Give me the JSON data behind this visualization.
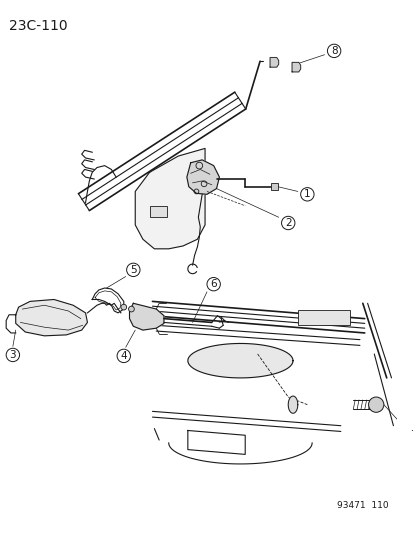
{
  "page_id": "23C-110",
  "catalog_number": "93471  110",
  "background_color": "#ffffff",
  "line_color": "#1a1a1a",
  "title_fontsize": 10,
  "callout_fontsize": 7.5,
  "small_fontsize": 6.5
}
